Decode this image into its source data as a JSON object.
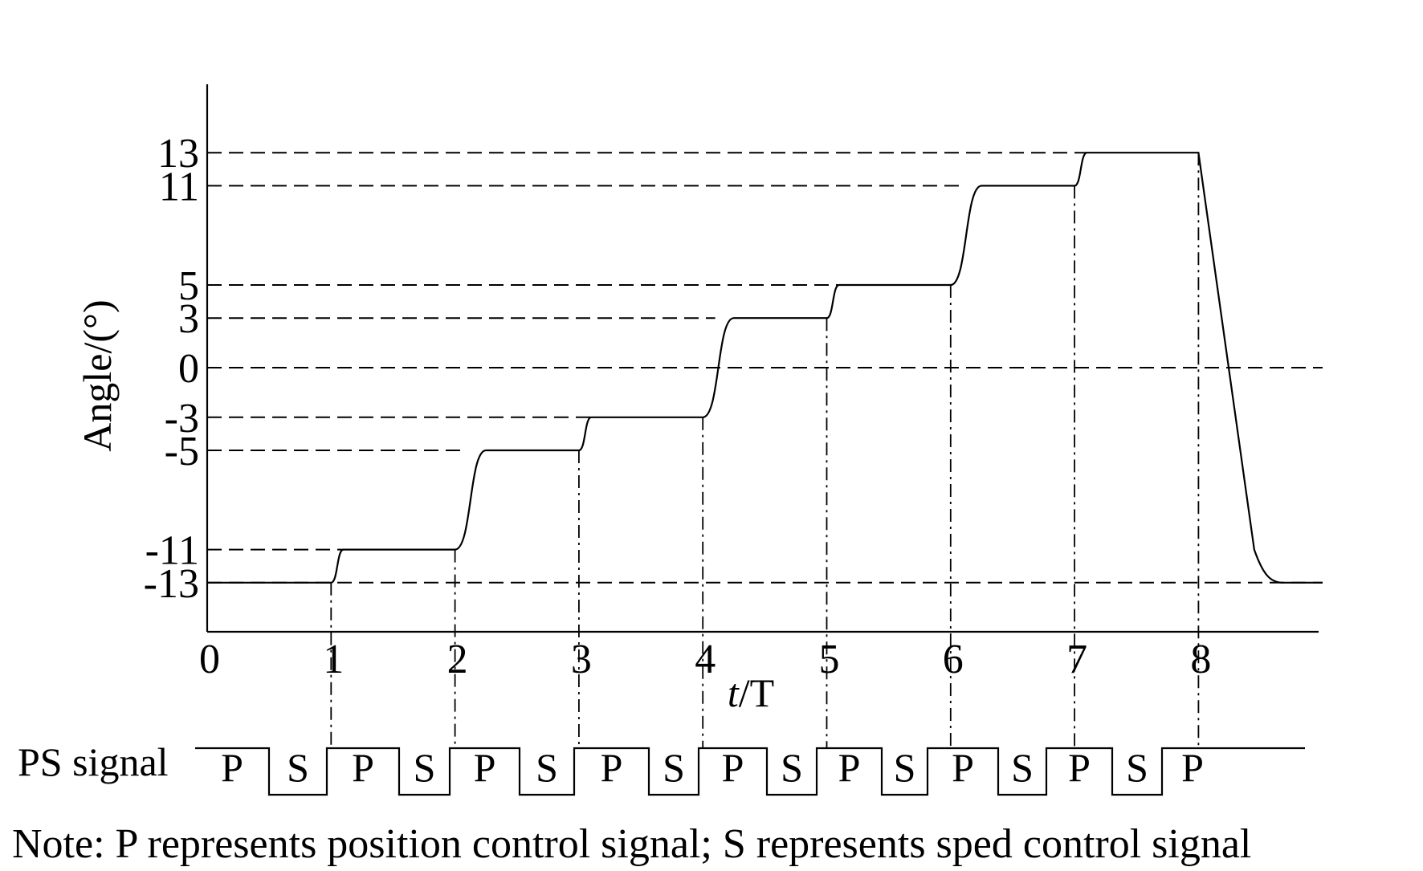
{
  "chart_data": {
    "type": "line",
    "xlabel_italic": "t",
    "xlabel_unit": "/T",
    "ylabel": "Angle/(°)",
    "x_ticks": [
      "0",
      "1",
      "2",
      "3",
      "4",
      "5",
      "6",
      "7",
      "8"
    ],
    "y_ticks": [
      13,
      11,
      5,
      3,
      0,
      -3,
      -5,
      -11,
      -13
    ],
    "y_tick_labels": [
      "13",
      "11",
      "5",
      "3",
      "0",
      "-3",
      "-5",
      "-11",
      "-13"
    ],
    "xlim": [
      0,
      9.3
    ],
    "ylim": [
      -16.2,
      17
    ],
    "series": [
      {
        "points": [
          [
            0,
            -13
          ],
          [
            1,
            -13
          ],
          [
            1.1,
            -11
          ],
          [
            2,
            -11
          ],
          [
            2.25,
            -5
          ],
          [
            3,
            -5
          ],
          [
            3.1,
            -3
          ],
          [
            4,
            -3
          ],
          [
            4.25,
            3
          ],
          [
            5,
            3
          ],
          [
            5.1,
            5
          ],
          [
            6,
            5
          ],
          [
            6.25,
            11
          ],
          [
            7,
            11
          ],
          [
            7.1,
            13
          ],
          [
            8,
            13
          ],
          [
            8.45,
            -11
          ],
          [
            8.65,
            -13
          ],
          [
            9.3,
            -13
          ]
        ]
      }
    ],
    "steps": [
      {
        "t0": 1,
        "from": -13,
        "to": -11
      },
      {
        "t0": 2,
        "from": -11,
        "to": -5
      },
      {
        "t0": 3,
        "from": -5,
        "to": -3
      },
      {
        "t0": 4,
        "from": -3,
        "to": 3
      },
      {
        "t0": 5,
        "from": 3,
        "to": 5
      },
      {
        "t0": 6,
        "from": 5,
        "to": 11
      },
      {
        "t0": 7,
        "from": 11,
        "to": 13
      }
    ],
    "grid": "dashed reference lines at each y tick, dash-dot verticals at t = 1…8"
  },
  "ps_signal": {
    "label": "PS signal",
    "segments": [
      "P",
      "S",
      "P",
      "S",
      "P",
      "S",
      "P",
      "S",
      "P",
      "S",
      "P",
      "S",
      "P",
      "S",
      "P",
      "S",
      "P"
    ]
  },
  "note": "Note: P represents position control signal; S represents sped control signal"
}
